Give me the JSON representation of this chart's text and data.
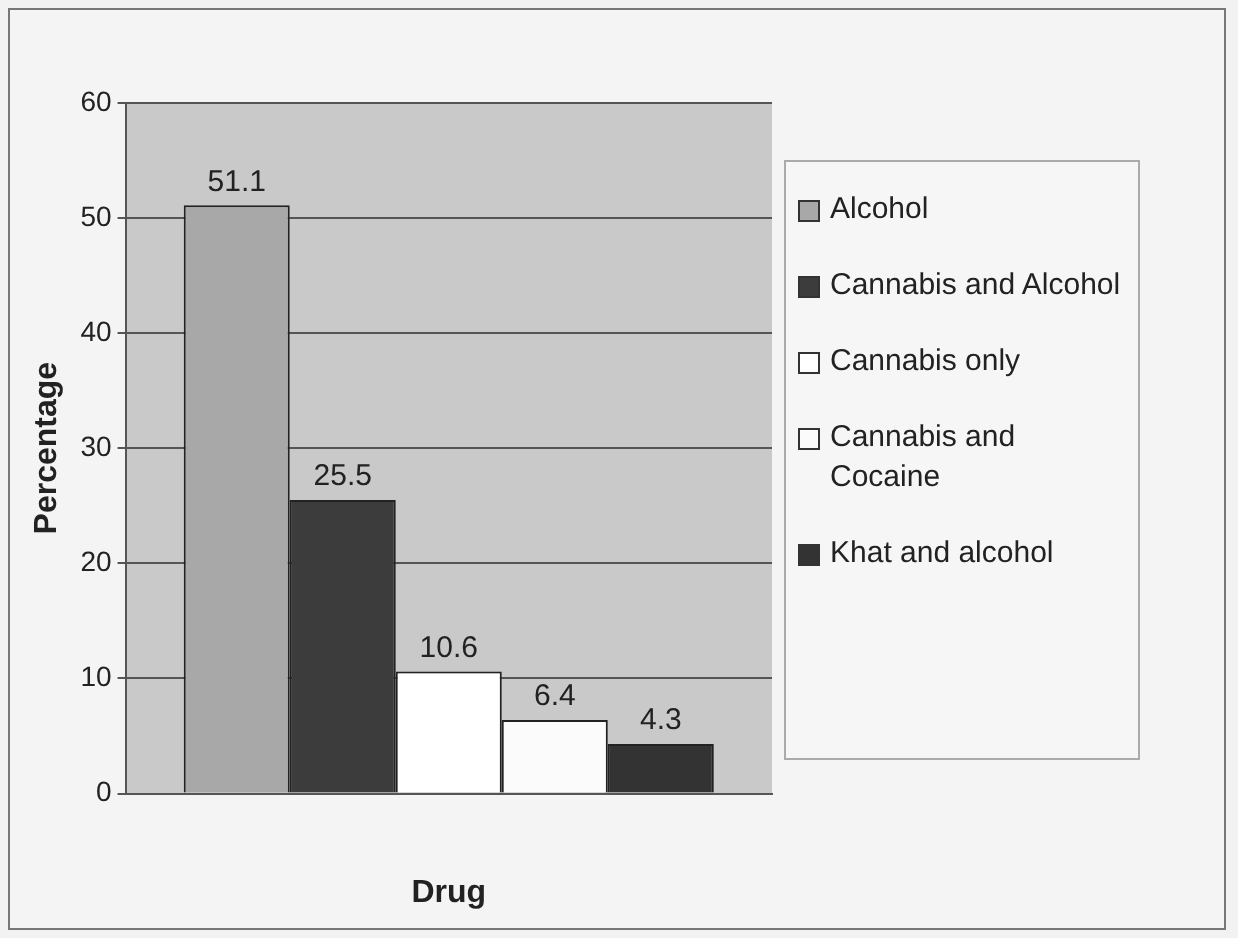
{
  "chart_data": {
    "type": "bar",
    "xlabel": "Drug",
    "ylabel": "Percentage",
    "categories": [
      null
    ],
    "series": [
      {
        "name": "Alcohol",
        "color": "#a8a8a8",
        "values": [
          51.1
        ]
      },
      {
        "name": "Cannabis and Alcohol",
        "color": "#3c3c3c",
        "values": [
          25.5
        ]
      },
      {
        "name": "Cannabis only",
        "color": "#ffffff",
        "values": [
          10.6
        ]
      },
      {
        "name": "Cannabis and Cocaine",
        "color": "#fbfbfb",
        "values": [
          6.4
        ]
      },
      {
        "name": "Khat and alcohol",
        "color": "#333333",
        "values": [
          4.3
        ]
      }
    ],
    "ylim": [
      0,
      60
    ],
    "yticks": [
      0,
      10,
      20,
      30,
      40,
      50,
      60
    ],
    "grid": "y",
    "data_labels": true,
    "legend": "right"
  }
}
